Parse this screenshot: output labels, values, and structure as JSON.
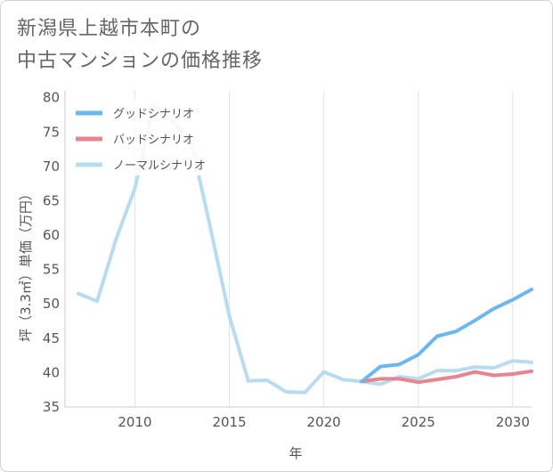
{
  "title_lines": [
    "新潟県上越市本町の",
    "中古マンションの価格推移"
  ],
  "chart_data": {
    "type": "line",
    "xlabel": "年",
    "ylabel": "坪（3.3㎡）単価（万円）",
    "xlim": [
      2006.3,
      2031
    ],
    "ylim": [
      35,
      81
    ],
    "xticks": [
      2010,
      2015,
      2020,
      2025,
      2030
    ],
    "yticks": [
      35,
      40,
      45,
      50,
      55,
      60,
      65,
      70,
      75,
      80
    ],
    "grid": "vertical",
    "legend_position": "top-left",
    "series": [
      {
        "name": "グッドシナリオ",
        "color": "#6cb7ec",
        "x": [
          2022,
          2023,
          2024,
          2025,
          2026,
          2027,
          2028,
          2029,
          2030,
          2031
        ],
        "y": [
          38.7,
          40.9,
          41.2,
          42.6,
          45.3,
          46.0,
          47.6,
          49.3,
          50.6,
          52.1
        ]
      },
      {
        "name": "バッドシナリオ",
        "color": "#e5858f",
        "x": [
          2022,
          2023,
          2024,
          2025,
          2026,
          2027,
          2028,
          2029,
          2030,
          2031
        ],
        "y": [
          38.7,
          39.1,
          39.1,
          38.6,
          39.0,
          39.4,
          40.1,
          39.6,
          39.8,
          40.2
        ]
      },
      {
        "name": "ノーマルシナリオ",
        "color": "#b8dcee",
        "x": [
          2007,
          2008,
          2009,
          2010,
          2011,
          2012,
          2013,
          2014,
          2015,
          2016,
          2017,
          2018,
          2019,
          2020,
          2021,
          2022,
          2023,
          2024,
          2025,
          2026,
          2027,
          2028,
          2029,
          2030,
          2031
        ],
        "y": [
          51.5,
          50.4,
          59.4,
          66.8,
          79.0,
          76.6,
          73.4,
          61.0,
          48.2,
          38.8,
          38.9,
          37.2,
          37.1,
          40.1,
          39.0,
          38.7,
          38.3,
          39.4,
          39.1,
          40.3,
          40.3,
          40.8,
          40.7,
          41.7,
          41.5
        ]
      }
    ]
  }
}
